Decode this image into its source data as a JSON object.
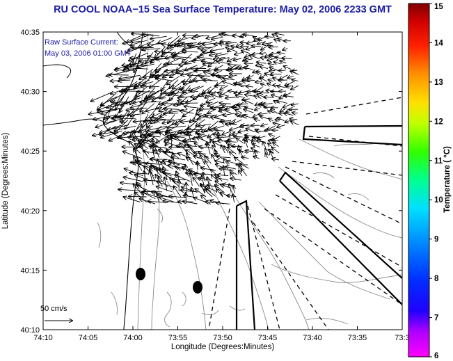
{
  "title": "RU COOL  NOAA−15  Sea Surface Temperature:  May 02, 2006 2233 GMT",
  "annotation": {
    "line1": "Raw Surface Current:",
    "line2": "May 03, 2006 01:00 GMT"
  },
  "scale_label": "50 cm/s",
  "axes": {
    "xlabel": "Longitude (Degrees:Minutes)",
    "ylabel": "Latitude (Degrees:Minutes)",
    "xticks": [
      "74:10",
      "74:05",
      "74:00",
      "73:55",
      "73:50",
      "73:45",
      "73:40",
      "73:35",
      "73:3"
    ],
    "yticks": [
      "40:35",
      "40:30",
      "40:25",
      "40:20",
      "40:15",
      "40:10"
    ]
  },
  "colorbar": {
    "label": "Temperature ( °C)",
    "ticks": [
      "15",
      "14",
      "13",
      "12",
      "11",
      "10",
      "9",
      "8",
      "7",
      "6"
    ],
    "range": [
      6,
      15
    ],
    "stops": [
      "#ff00ff",
      "#7f00ff",
      "#0000ff",
      "#0080ff",
      "#00ffff",
      "#00ff80",
      "#00ff00",
      "#80ff00",
      "#ffff00",
      "#ff8000",
      "#ff0000",
      "#800000"
    ]
  }
}
